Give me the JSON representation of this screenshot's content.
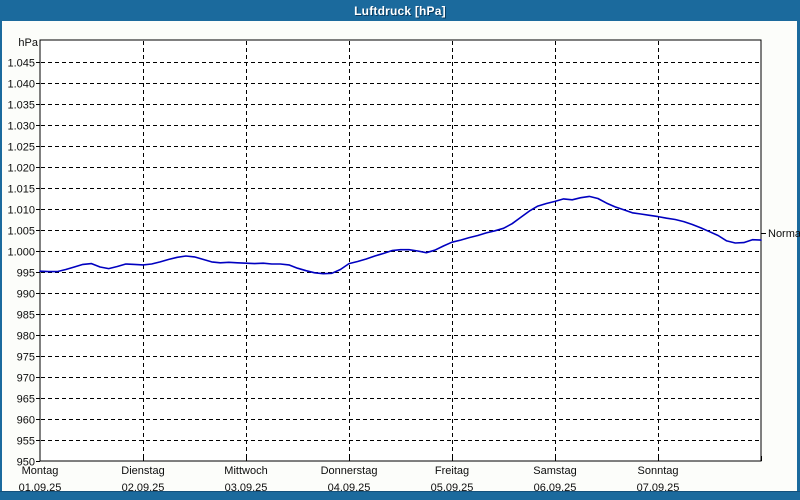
{
  "window": {
    "title": "Luftdruck [hPa]"
  },
  "colors": {
    "titlebar": "#1b6a9d",
    "window_border": "#1b6a9d",
    "plot_background": "#ffffff",
    "page_background": "#fcfdfa",
    "grid": "#000000",
    "axis_text": "#0d0d0d",
    "curve": "#0000c0",
    "title_text": "#ffffff"
  },
  "chart_data": {
    "type": "line",
    "title": "Luftdruck [hPa]",
    "ylabel": "hPa",
    "ylim": [
      950,
      1045
    ],
    "ytick_step": 5,
    "grid": "dashed",
    "legend_position": "none",
    "y_ticks": [
      {
        "value": 1045,
        "label": "1.045"
      },
      {
        "value": 1040,
        "label": "1.040"
      },
      {
        "value": 1035,
        "label": "1.035"
      },
      {
        "value": 1030,
        "label": "1.030"
      },
      {
        "value": 1025,
        "label": "1.025"
      },
      {
        "value": 1020,
        "label": "1.020"
      },
      {
        "value": 1015,
        "label": "1.015"
      },
      {
        "value": 1010,
        "label": "1.010"
      },
      {
        "value": 1005,
        "label": "1.005"
      },
      {
        "value": 1000,
        "label": "1.000"
      },
      {
        "value": 995,
        "label": "995"
      },
      {
        "value": 990,
        "label": "990"
      },
      {
        "value": 985,
        "label": "985"
      },
      {
        "value": 980,
        "label": "980"
      },
      {
        "value": 975,
        "label": "975"
      },
      {
        "value": 970,
        "label": "970"
      },
      {
        "value": 965,
        "label": "965"
      },
      {
        "value": 960,
        "label": "960"
      },
      {
        "value": 955,
        "label": "955"
      },
      {
        "value": 950,
        "label": "950"
      }
    ],
    "days": [
      {
        "name": "Montag",
        "date": "01.09.25"
      },
      {
        "name": "Dienstag",
        "date": "02.09.25"
      },
      {
        "name": "Mittwoch",
        "date": "03.09.25"
      },
      {
        "name": "Donnerstag",
        "date": "04.09.25"
      },
      {
        "name": "Freitag",
        "date": "05.09.25"
      },
      {
        "name": "Samstag",
        "date": "06.09.25"
      },
      {
        "name": "Sonntag",
        "date": "07.09.25"
      }
    ],
    "x_range_hours": [
      0,
      168
    ],
    "x_hours_step": 2,
    "series": [
      {
        "name": "Luftdruck",
        "color": "#0000c0",
        "values": [
          995.2,
          995.1,
          995.1,
          995.6,
          996.2,
          996.8,
          997.0,
          996.2,
          995.8,
          996.3,
          996.9,
          996.8,
          996.7,
          996.9,
          997.4,
          998.0,
          998.5,
          998.8,
          998.6,
          998.0,
          997.4,
          997.2,
          997.3,
          997.2,
          997.1,
          997.0,
          997.1,
          996.9,
          996.9,
          996.7,
          995.9,
          995.3,
          994.8,
          994.6,
          994.7,
          995.6,
          997.0,
          997.5,
          998.1,
          998.8,
          999.4,
          1000.1,
          1000.3,
          1000.3,
          1000.0,
          999.6,
          1000.2,
          1001.2,
          1002.1,
          1002.6,
          1003.2,
          1003.7,
          1004.3,
          1004.8,
          1005.4,
          1006.5,
          1008.0,
          1009.5,
          1010.7,
          1011.3,
          1011.8,
          1012.4,
          1012.2,
          1012.7,
          1013.0,
          1012.5,
          1011.4,
          1010.5,
          1009.8,
          1009.1,
          1008.8,
          1008.5,
          1008.2,
          1007.8,
          1007.5,
          1007.0,
          1006.3,
          1005.5,
          1004.6,
          1003.7,
          1002.4,
          1001.9,
          1002.0,
          1002.7,
          1002.6
        ]
      }
    ],
    "annotations": [
      {
        "label": "Normal",
        "value": 1004.3,
        "side": "right"
      }
    ]
  }
}
